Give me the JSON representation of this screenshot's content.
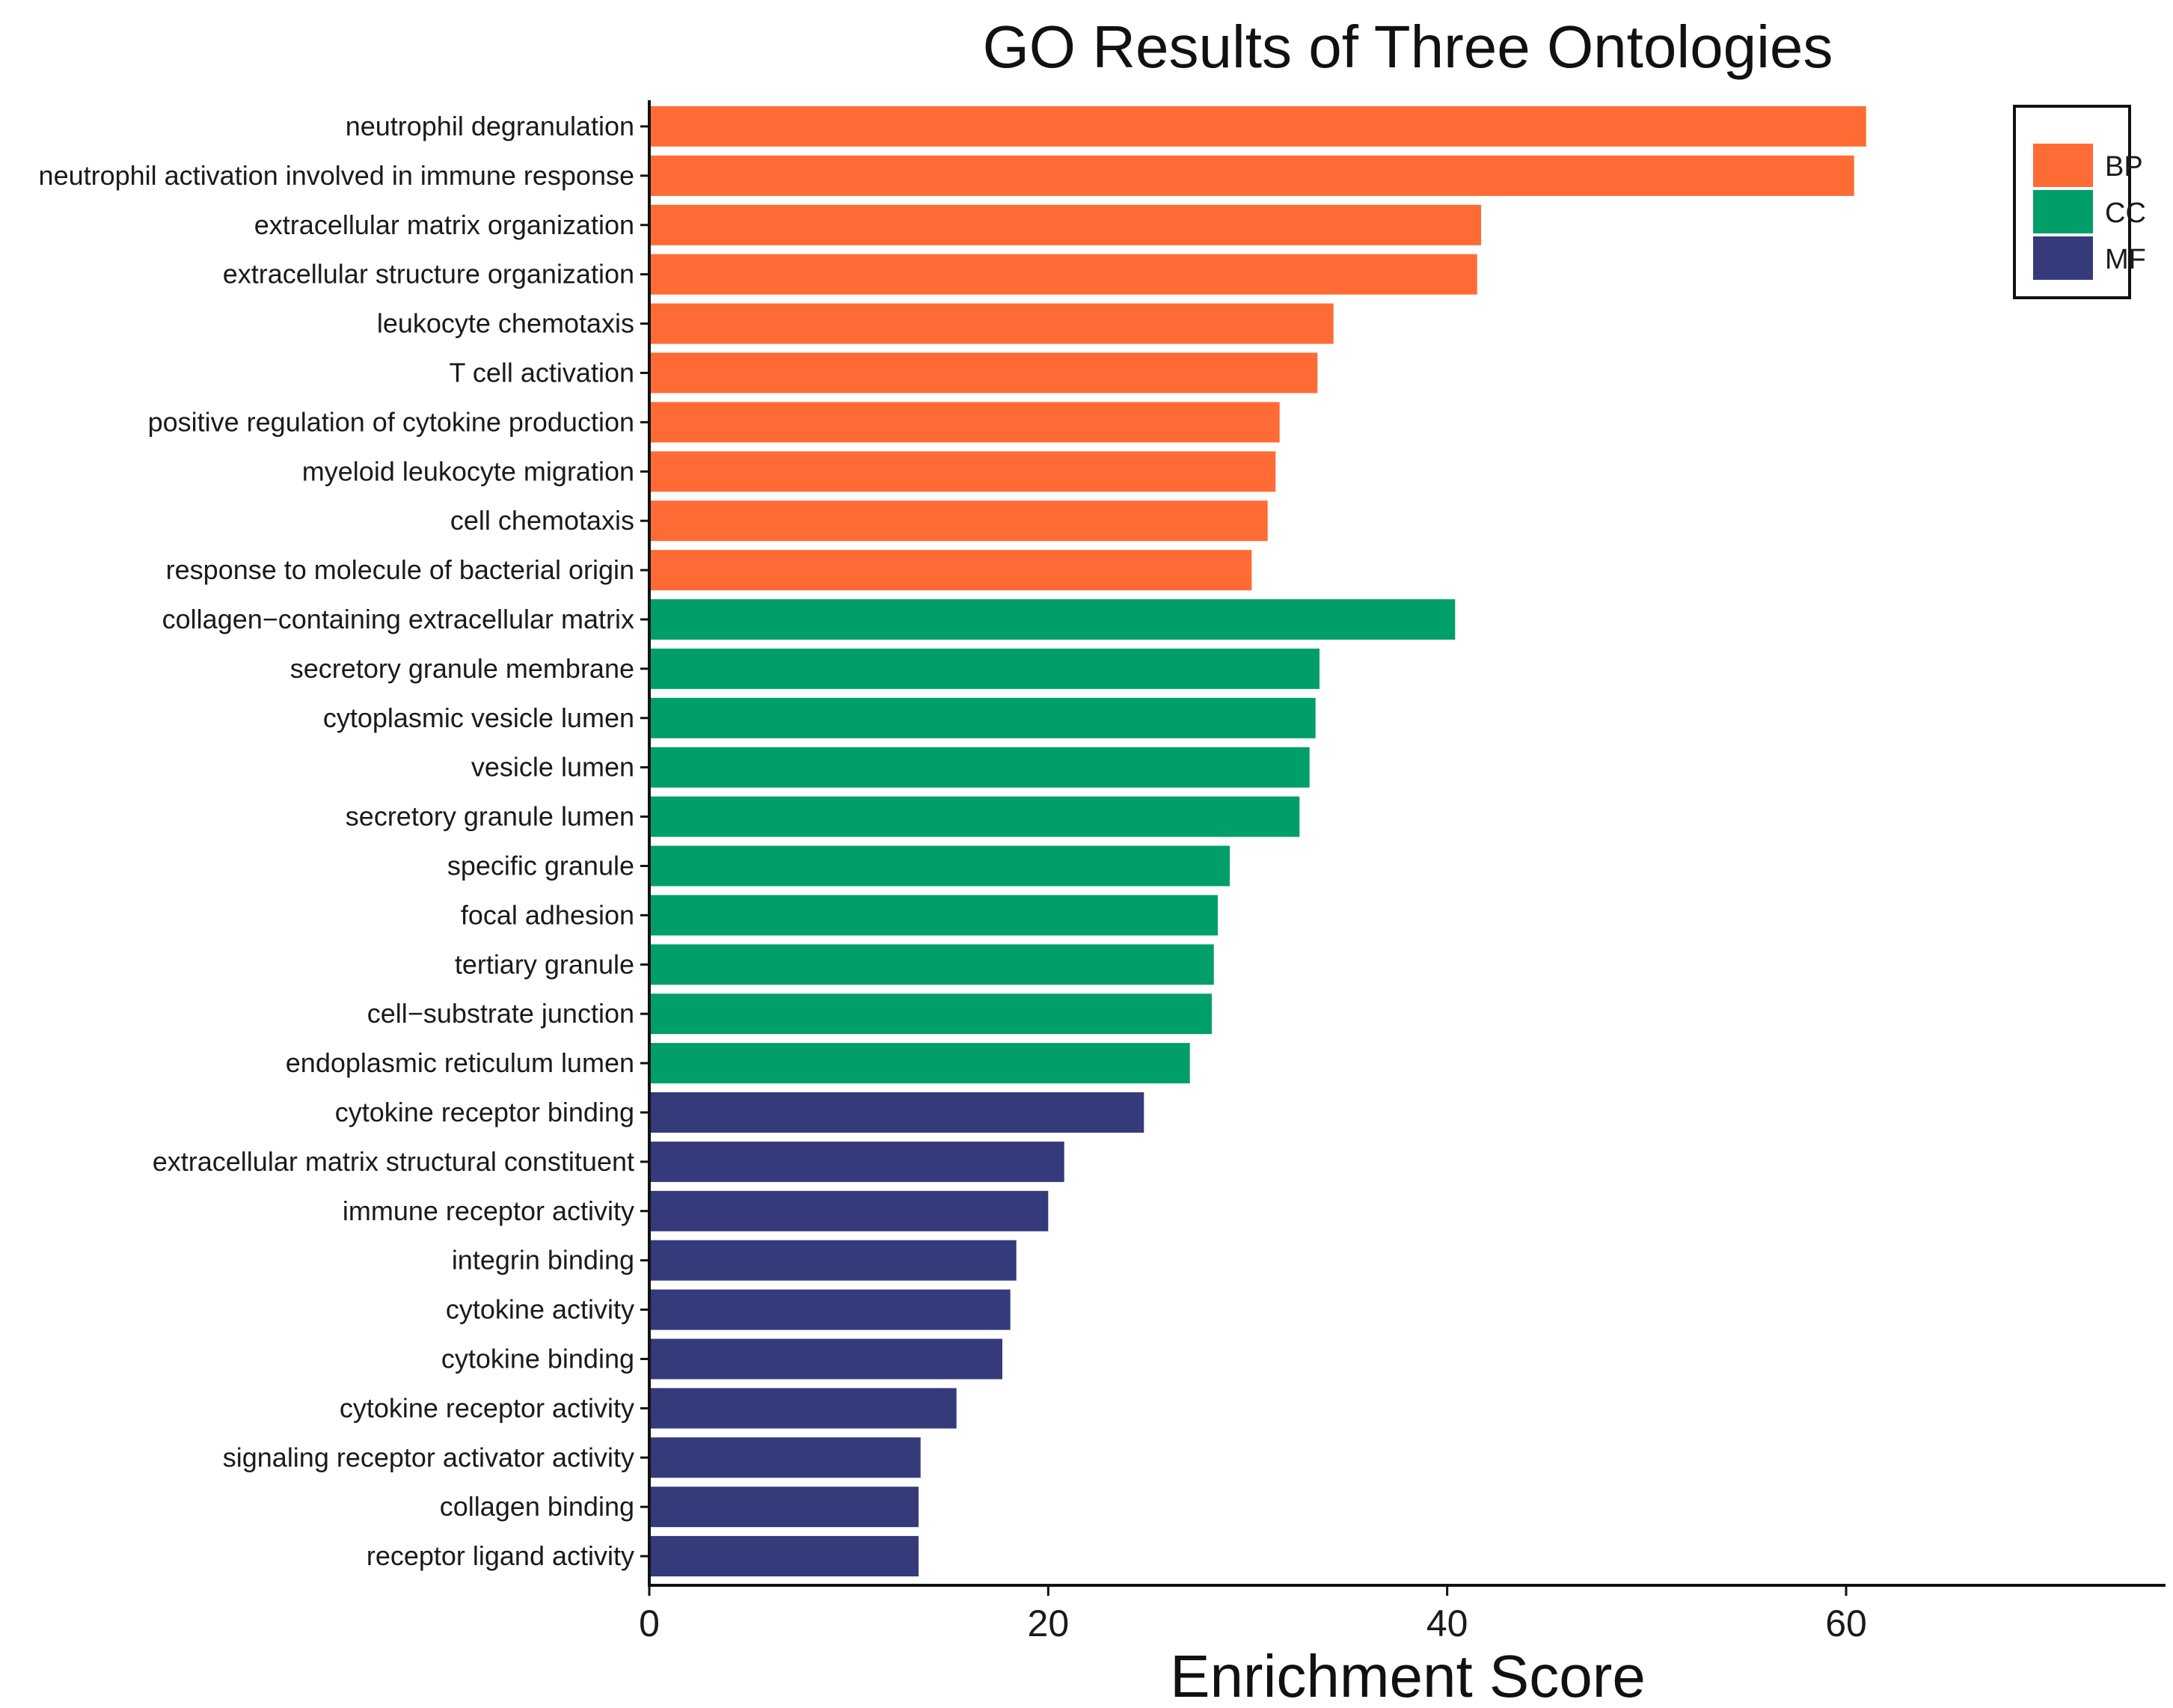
{
  "chart_data": {
    "type": "bar",
    "orientation": "horizontal",
    "title": "GO Results of Three Ontologies",
    "xlabel": "Enrichment Score",
    "ylabel": "",
    "xlim": [
      0,
      75
    ],
    "xticks": [
      0,
      20,
      40,
      60
    ],
    "grid": false,
    "legend_position": "top-right",
    "legend": [
      {
        "key": "BP",
        "label": "BP",
        "color": "#FF6B35"
      },
      {
        "key": "CC",
        "label": "CC",
        "color": "#009E69"
      },
      {
        "key": "MF",
        "label": "MF",
        "color": "#343A7A"
      }
    ],
    "categories": [
      "neutrophil degranulation",
      "neutrophil activation involved in immune response",
      "extracellular matrix organization",
      "extracellular structure organization",
      "leukocyte chemotaxis",
      "T cell activation",
      "positive regulation of cytokine production",
      "myeloid leukocyte migration",
      "cell chemotaxis",
      "response to molecule of bacterial origin",
      "collagen−containing extracellular matrix",
      "secretory granule membrane",
      "cytoplasmic vesicle lumen",
      "vesicle lumen",
      "secretory granule lumen",
      "specific granule",
      "focal adhesion",
      "tertiary granule",
      "cell−substrate junction",
      "endoplasmic reticulum lumen",
      "cytokine receptor binding",
      "extracellular matrix structural constituent",
      "immune receptor activity",
      "integrin binding",
      "cytokine activity",
      "cytokine binding",
      "cytokine receptor activity",
      "signaling receptor activator activity",
      "collagen binding",
      "receptor ligand activity"
    ],
    "values": [
      61.0,
      60.4,
      41.7,
      41.5,
      34.3,
      33.5,
      31.6,
      31.4,
      31.0,
      30.2,
      40.4,
      33.6,
      33.4,
      33.1,
      32.6,
      29.1,
      28.5,
      28.3,
      28.2,
      27.1,
      24.8,
      20.8,
      20.0,
      18.4,
      18.1,
      17.7,
      15.4,
      13.6,
      13.5,
      13.5
    ],
    "groups": [
      "BP",
      "BP",
      "BP",
      "BP",
      "BP",
      "BP",
      "BP",
      "BP",
      "BP",
      "BP",
      "CC",
      "CC",
      "CC",
      "CC",
      "CC",
      "CC",
      "CC",
      "CC",
      "CC",
      "CC",
      "MF",
      "MF",
      "MF",
      "MF",
      "MF",
      "MF",
      "MF",
      "MF",
      "MF",
      "MF"
    ]
  }
}
